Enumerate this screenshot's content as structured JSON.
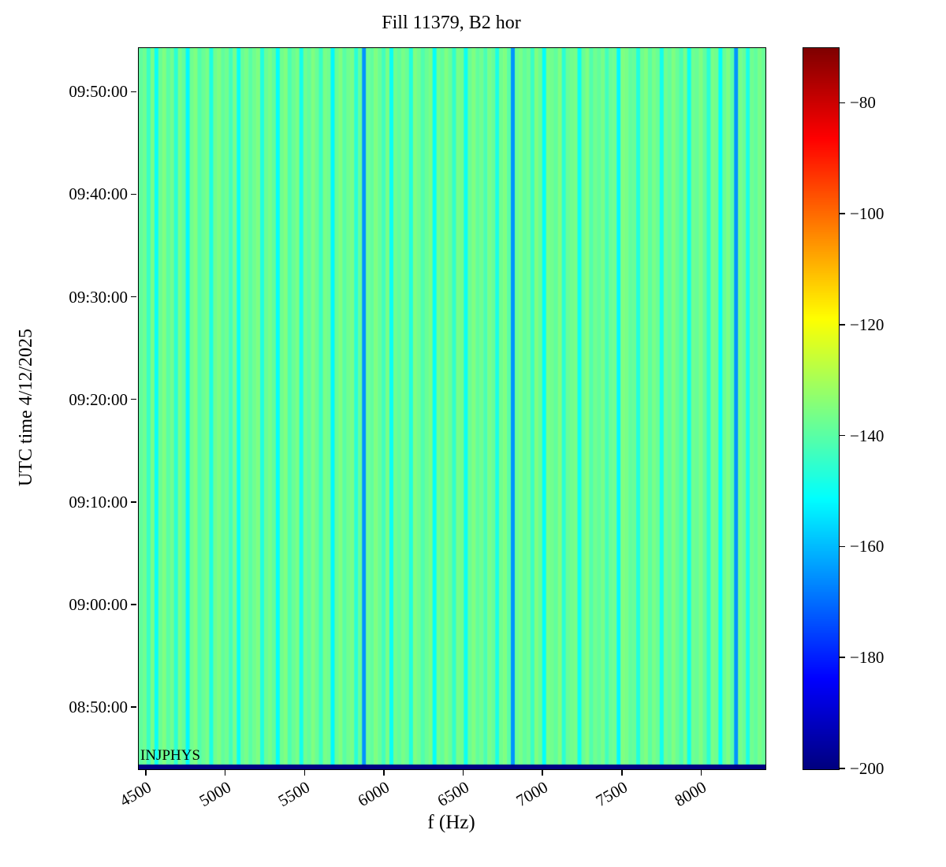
{
  "title": "Fill 11379, B2 hor",
  "xlabel": "f (Hz)",
  "ylabel": "UTC time 4/12/2025",
  "annotation": "INJPHYS",
  "chart_data": {
    "type": "heatmap",
    "title": "Fill 11379, B2 hor",
    "xlabel": "f (Hz)",
    "ylabel": "UTC time 4/12/2025",
    "annotation": "INJPHYS",
    "colormap": "jet",
    "x_range_hz": [
      4450,
      8400
    ],
    "x_ticks_hz": [
      4500,
      5000,
      5500,
      6000,
      6500,
      7000,
      7500,
      8000
    ],
    "y_time_start": "08:44:00",
    "y_time_end": "09:54:20",
    "y_ticks": [
      "08:50:00",
      "09:00:00",
      "09:10:00",
      "09:20:00",
      "09:30:00",
      "09:40:00",
      "09:50:00"
    ],
    "colorbar_range_db": [
      -200,
      -70
    ],
    "colorbar_ticks_db": [
      -80,
      -100,
      -120,
      -140,
      -160,
      -180,
      -200
    ],
    "bottom_strip_db": -200,
    "column_values_db": [
      -139,
      -137,
      -144,
      -136,
      -150,
      -138,
      -135,
      -140,
      -137,
      -146,
      -136,
      -139,
      -152,
      -137,
      -135,
      -141,
      -138,
      -136,
      -148,
      -137,
      -135,
      -139,
      -137,
      -143,
      -136,
      -150,
      -138,
      -136,
      -140,
      -137,
      -135,
      -147,
      -138,
      -136,
      -139,
      -151,
      -137,
      -135,
      -142,
      -138,
      -136,
      -149,
      -137,
      -139,
      -135,
      -138,
      -144,
      -136,
      -137,
      -152,
      -138,
      -135,
      -140,
      -137,
      -136,
      -146,
      -138,
      -165,
      -137,
      -139,
      -135,
      -138,
      -143,
      -136,
      -150,
      -137,
      -139,
      -136,
      -138,
      -147,
      -135,
      -137,
      -141,
      -138,
      -136,
      -151,
      -137,
      -139,
      -135,
      -138,
      -145,
      -136,
      -137,
      -150,
      -138,
      -135,
      -139,
      -137,
      -142,
      -136,
      -138,
      -148,
      -137,
      -135,
      -140,
      -165,
      -138,
      -136,
      -139,
      -137,
      -144,
      -135,
      -138,
      -151,
      -136,
      -137,
      -139,
      -135,
      -146,
      -138,
      -137,
      -136,
      -150,
      -138,
      -135,
      -141,
      -137,
      -139,
      -136,
      -143,
      -138,
      -137,
      -152,
      -135,
      -136,
      -139,
      -138,
      -147,
      -137,
      -135,
      -140,
      -136,
      -138,
      -149,
      -137,
      -139,
      -135,
      -138,
      -142,
      -136,
      -150,
      -137,
      -138,
      -135,
      -139,
      -146,
      -136,
      -137,
      -151,
      -138,
      -135,
      -140,
      -165,
      -136,
      -138,
      -148,
      -137,
      -139,
      -136,
      -138
    ]
  }
}
